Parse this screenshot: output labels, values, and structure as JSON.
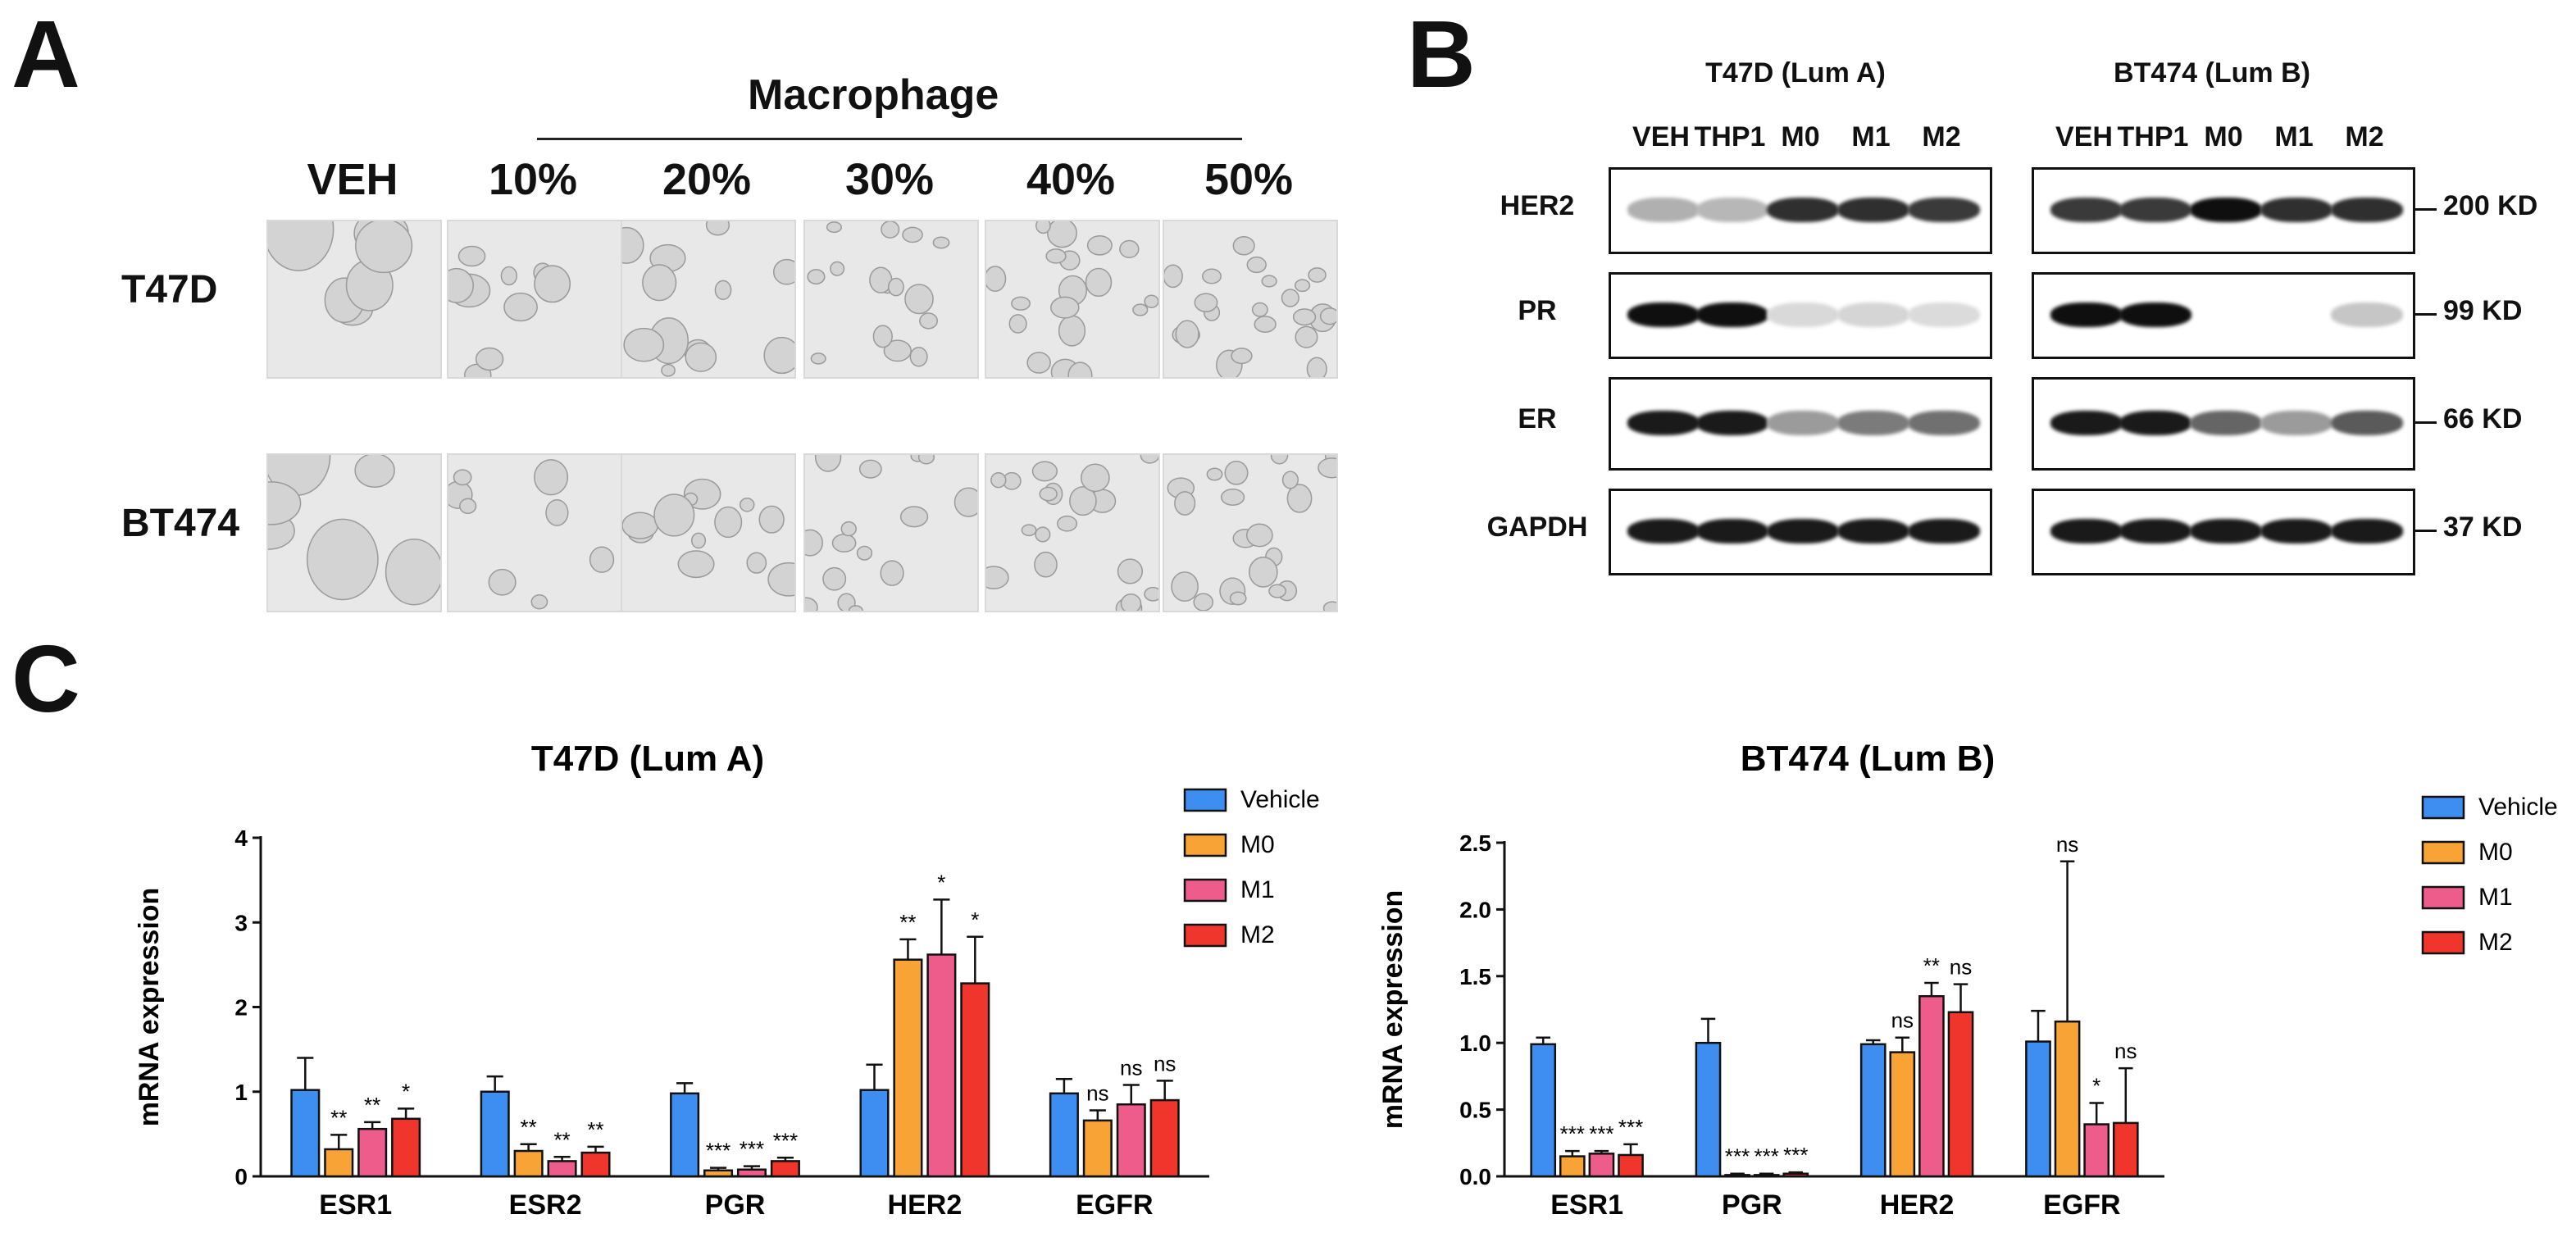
{
  "panel_a": {
    "letter": "A",
    "header": "Macrophage",
    "columns": [
      "VEH",
      "10%",
      "20%",
      "30%",
      "40%",
      "50%"
    ],
    "rows": [
      "T47D",
      "BT474"
    ]
  },
  "panel_b": {
    "letter": "B",
    "groups": [
      {
        "title": "T47D (Lum A)",
        "lanes": [
          "VEH",
          "THP1",
          "M0",
          "M1",
          "M2"
        ]
      },
      {
        "title": "BT474 (Lum B)",
        "lanes": [
          "VEH",
          "THP1",
          "M0",
          "M1",
          "M2"
        ]
      }
    ],
    "proteins": [
      "HER2",
      "PR",
      "ER",
      "GAPDH"
    ],
    "sizes": [
      "200 KD",
      "99 KD",
      "66 KD",
      "37 KD"
    ],
    "band_intensity": [
      [
        [
          0.25,
          0.22,
          0.85,
          0.85,
          0.8
        ],
        [
          0.8,
          0.8,
          1.0,
          0.85,
          0.85
        ]
      ],
      [
        [
          1.0,
          1.0,
          0.06,
          0.08,
          0.05
        ],
        [
          1.0,
          1.0,
          0.0,
          0.0,
          0.15
        ]
      ],
      [
        [
          0.95,
          0.95,
          0.35,
          0.5,
          0.55
        ],
        [
          0.95,
          0.95,
          0.6,
          0.35,
          0.65
        ]
      ],
      [
        [
          0.95,
          0.95,
          0.95,
          0.95,
          0.95
        ],
        [
          0.95,
          0.95,
          0.95,
          0.95,
          0.95
        ]
      ]
    ]
  },
  "panel_c": {
    "letter": "C"
  },
  "colors": {
    "vehicle": "#3d8ef0",
    "m0": "#f7a335",
    "m1": "#ee5c8c",
    "m2": "#f0352d"
  },
  "chart_data": [
    {
      "type": "bar",
      "title": "T47D (Lum A)",
      "xlabel": "",
      "ylabel": "mRNA expression",
      "categories": [
        "ESR1",
        "ESR2",
        "PGR",
        "HER2",
        "EGFR"
      ],
      "ylim": [
        0,
        4
      ],
      "yticks": [
        "0",
        "1",
        "2",
        "3",
        "4"
      ],
      "legend_position": "top-right",
      "series": [
        {
          "name": "Vehicle",
          "values": [
            1.02,
            1.0,
            0.98,
            1.02,
            0.98
          ],
          "errors": [
            0.38,
            0.18,
            0.12,
            0.3,
            0.17
          ]
        },
        {
          "name": "M0",
          "values": [
            0.32,
            0.3,
            0.07,
            2.56,
            0.66
          ],
          "errors": [
            0.17,
            0.08,
            0.03,
            0.24,
            0.12
          ]
        },
        {
          "name": "M1",
          "values": [
            0.56,
            0.18,
            0.08,
            2.62,
            0.85
          ],
          "errors": [
            0.08,
            0.05,
            0.04,
            0.65,
            0.23
          ]
        },
        {
          "name": "M2",
          "values": [
            0.68,
            0.28,
            0.18,
            2.28,
            0.9
          ],
          "errors": [
            0.12,
            0.07,
            0.04,
            0.55,
            0.23
          ]
        }
      ],
      "significance": [
        [
          "",
          "**",
          "**",
          "*"
        ],
        [
          "",
          "**",
          "**",
          "**"
        ],
        [
          "",
          "***",
          "***",
          "***"
        ],
        [
          "",
          "**",
          "*",
          "*"
        ],
        [
          "",
          "ns",
          "ns",
          "ns"
        ]
      ]
    },
    {
      "type": "bar",
      "title": "BT474 (Lum B)",
      "xlabel": "",
      "ylabel": "mRNA expression",
      "categories": [
        "ESR1",
        "PGR",
        "HER2",
        "EGFR"
      ],
      "ylim": [
        0,
        2.5
      ],
      "yticks": [
        "0.0",
        "0.5",
        "1.0",
        "1.5",
        "2.0",
        "2.5"
      ],
      "legend_position": "top-right",
      "series": [
        {
          "name": "Vehicle",
          "values": [
            0.99,
            1.0,
            0.99,
            1.01
          ],
          "errors": [
            0.05,
            0.18,
            0.03,
            0.23
          ]
        },
        {
          "name": "M0",
          "values": [
            0.15,
            0.01,
            0.93,
            1.16
          ],
          "errors": [
            0.04,
            0.01,
            0.11,
            1.2
          ]
        },
        {
          "name": "M1",
          "values": [
            0.17,
            0.01,
            1.35,
            0.39
          ],
          "errors": [
            0.02,
            0.01,
            0.1,
            0.16
          ]
        },
        {
          "name": "M2",
          "values": [
            0.16,
            0.02,
            1.23,
            0.4
          ],
          "errors": [
            0.08,
            0.01,
            0.21,
            0.41
          ]
        }
      ],
      "significance": [
        [
          "",
          "***",
          "***",
          "***"
        ],
        [
          "",
          "***",
          "***",
          "***"
        ],
        [
          "",
          "ns",
          "**",
          "ns"
        ],
        [
          "",
          "ns",
          "*",
          "ns"
        ]
      ]
    }
  ]
}
